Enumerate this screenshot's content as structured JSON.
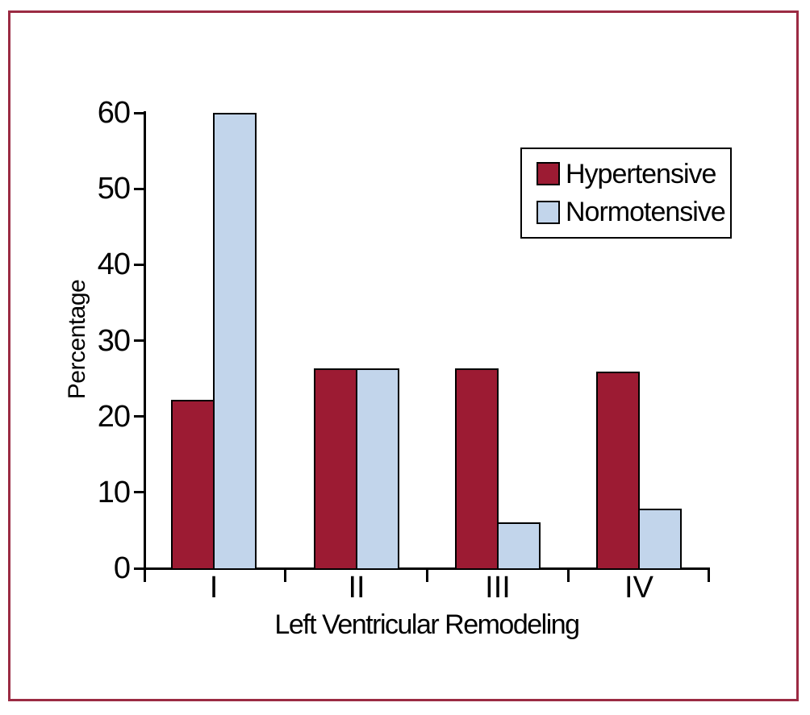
{
  "figure": {
    "frame_color": "#9B2B43",
    "background_color": "#ffffff",
    "axis_color": "#000000",
    "text_color": "#000000"
  },
  "chart_data": {
    "type": "bar",
    "title": "",
    "categories": [
      "I",
      "II",
      "III",
      "IV"
    ],
    "series": [
      {
        "name": "Hypertensive",
        "color": "#9C1B33",
        "values": [
          22.2,
          26.3,
          26.3,
          25.9
        ]
      },
      {
        "name": "Normotensive",
        "color": "#C2D5EB",
        "values": [
          60.0,
          26.3,
          6.1,
          7.9
        ]
      }
    ],
    "xlabel": "Left Ventricular Remodeling",
    "ylabel": "Percentage",
    "ylim": [
      0,
      60
    ],
    "yticks": [
      0,
      10,
      20,
      30,
      40,
      50,
      60
    ],
    "grid": false,
    "legend_position": "upper-right"
  }
}
